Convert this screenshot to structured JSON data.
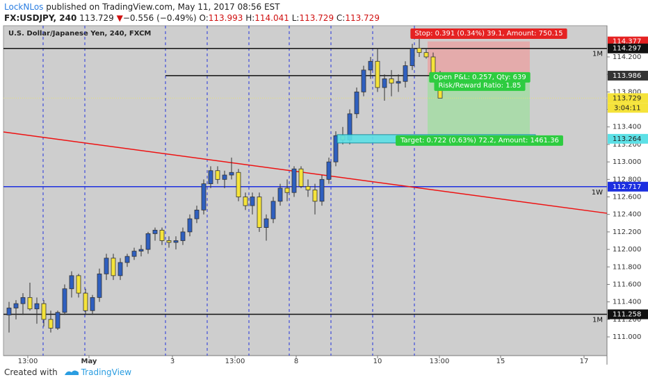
{
  "header": {
    "author": "LockNLos",
    "published": "published on TradingView.com, May 11, 2017 08:56 EST",
    "symbol": "FX:USDJPY, 240",
    "arrow": "▼",
    "change": "−0.556 (−0.49%)",
    "ohlc_labels": [
      "O:",
      "H:",
      "L:",
      "C:"
    ]
  },
  "footer": {
    "created": "Created with",
    "brand": "TradingView"
  },
  "chart_data": {
    "type": "candlestick",
    "title": "U.S. Dollar/Japanese Yen, 240, FXCM",
    "up_color": "#2f5fbf",
    "down_color": "#f5e33a",
    "xlim": [
      -0.8,
      86
    ],
    "ylim": [
      110.786,
      114.557
    ],
    "xticks": [
      {
        "value": 2.7,
        "label": "13:00"
      },
      {
        "value": 11.5,
        "label": "May"
      },
      {
        "value": 23.5,
        "label": "3"
      },
      {
        "value": 32.5,
        "label": "13:00"
      },
      {
        "value": 41.3,
        "label": "8"
      },
      {
        "value": 53,
        "label": "10"
      },
      {
        "value": 61.9,
        "label": "13:00"
      },
      {
        "value": 70.7,
        "label": "15"
      },
      {
        "value": 82.7,
        "label": "17"
      }
    ],
    "yticks": [
      {
        "value": 111.0,
        "label": "111.000"
      },
      {
        "value": 111.2,
        "label": "111.200"
      },
      {
        "value": 111.4,
        "label": "111.400"
      },
      {
        "value": 111.6,
        "label": "111.600"
      },
      {
        "value": 111.8,
        "label": "111.800"
      },
      {
        "value": 112.0,
        "label": "112.000"
      },
      {
        "value": 112.2,
        "label": "112.200"
      },
      {
        "value": 112.4,
        "label": "112.400"
      },
      {
        "value": 112.6,
        "label": "112.600"
      },
      {
        "value": 112.8,
        "label": "112.800"
      },
      {
        "value": 113.0,
        "label": "113.000"
      },
      {
        "value": 113.2,
        "label": "113.200"
      },
      {
        "value": 113.4,
        "label": "113.400"
      },
      {
        "value": 113.6,
        "label": "113.600"
      },
      {
        "value": 113.8,
        "label": "113.800"
      },
      {
        "value": 114.0,
        "label": "114.000"
      },
      {
        "value": 114.2,
        "label": "114.200"
      }
    ],
    "session_breaks": [
      4.9,
      10.9,
      22.5,
      28.5,
      34.5,
      40.3,
      46.3,
      52.3,
      58.3
    ],
    "candles": {
      "open": [
        111.25,
        111.33,
        111.38,
        111.45,
        111.32,
        111.38,
        111.2,
        111.1,
        111.28,
        111.55,
        111.7,
        111.5,
        111.3,
        111.45,
        111.72,
        111.9,
        111.7,
        111.85,
        111.92,
        111.98,
        112.0,
        112.18,
        112.22,
        112.1,
        112.08,
        112.1,
        112.2,
        112.35,
        112.45,
        112.75,
        112.9,
        112.8,
        112.85,
        112.88,
        112.6,
        112.5,
        112.6,
        112.25,
        112.35,
        112.55,
        112.7,
        112.65,
        112.92,
        112.72,
        112.68,
        112.55,
        112.8,
        113.0,
        113.3,
        113.25,
        113.55,
        113.8,
        114.05,
        114.15,
        113.85,
        113.95,
        113.9,
        113.92,
        114.1,
        114.3,
        114.25,
        114.2,
        113.993
      ],
      "high": [
        111.4,
        111.42,
        111.5,
        111.62,
        111.45,
        111.42,
        111.3,
        111.3,
        111.6,
        111.75,
        111.72,
        111.55,
        111.48,
        111.78,
        111.95,
        111.95,
        111.9,
        111.95,
        112.02,
        112.05,
        112.2,
        112.25,
        112.25,
        112.15,
        112.15,
        112.25,
        112.4,
        112.5,
        112.8,
        112.95,
        112.95,
        112.9,
        113.05,
        112.92,
        112.65,
        112.65,
        112.65,
        112.4,
        112.6,
        112.75,
        112.8,
        112.95,
        112.95,
        112.8,
        112.75,
        112.85,
        113.05,
        113.35,
        113.4,
        113.6,
        113.85,
        114.1,
        114.2,
        114.3,
        114.0,
        114.05,
        114.0,
        114.15,
        114.35,
        114.45,
        114.3,
        114.25,
        114.041
      ],
      "low": [
        111.05,
        111.2,
        111.25,
        111.3,
        111.15,
        111.12,
        111.05,
        111.08,
        111.25,
        111.45,
        111.45,
        111.25,
        111.25,
        111.4,
        111.65,
        111.65,
        111.65,
        111.8,
        111.88,
        111.92,
        111.95,
        112.1,
        112.05,
        112.02,
        112.0,
        112.05,
        112.15,
        112.3,
        112.4,
        112.7,
        112.75,
        112.7,
        112.8,
        112.55,
        112.45,
        112.4,
        112.2,
        112.1,
        112.3,
        112.5,
        112.55,
        112.6,
        112.7,
        112.6,
        112.4,
        112.5,
        112.75,
        112.95,
        113.2,
        113.2,
        113.5,
        113.75,
        113.95,
        113.8,
        113.7,
        113.75,
        113.8,
        113.85,
        114.05,
        114.2,
        114.18,
        113.95,
        113.729
      ],
      "close": [
        111.33,
        111.38,
        111.45,
        111.32,
        111.38,
        111.2,
        111.1,
        111.28,
        111.55,
        111.7,
        111.5,
        111.3,
        111.45,
        111.72,
        111.9,
        111.7,
        111.85,
        111.92,
        111.98,
        112.0,
        112.18,
        112.22,
        112.1,
        112.08,
        112.1,
        112.2,
        112.35,
        112.45,
        112.75,
        112.9,
        112.8,
        112.85,
        112.88,
        112.6,
        112.5,
        112.6,
        112.25,
        112.35,
        112.55,
        112.7,
        112.65,
        112.92,
        112.72,
        112.68,
        112.55,
        112.8,
        113.0,
        113.3,
        113.25,
        113.55,
        113.8,
        114.05,
        114.15,
        113.85,
        113.95,
        113.9,
        113.92,
        114.1,
        114.3,
        114.25,
        114.2,
        113.993,
        113.729
      ]
    },
    "levels": [
      {
        "value": 114.297,
        "label": "1M",
        "color": "#111111"
      },
      {
        "value": 111.258,
        "label": "1M",
        "color": "#111111"
      },
      {
        "value": 112.717,
        "label": "1W",
        "color": "#1c2fe0"
      }
    ],
    "trendline": {
      "y_start": 113.342,
      "y_end": 112.413,
      "color": "#ee1111"
    },
    "entry_line": {
      "value": 113.986,
      "x_start": 22.5
    },
    "last_price": 113.729,
    "countdown": "3:04:11",
    "position": {
      "x_start": 60.2,
      "x_end": 74.9,
      "entry": 113.986,
      "stop": 114.377,
      "target": 113.264,
      "stop_label": "Stop: 0.391 (0.34%) 39.1, Amount: 750.15",
      "pnl_label": "Open P&L: 0.257, Qty: 639",
      "rr_label": "Risk/Reward Ratio: 1.85",
      "target_label": "Target: 0.722 (0.63%) 72.2, Amount: 1461.36"
    }
  }
}
